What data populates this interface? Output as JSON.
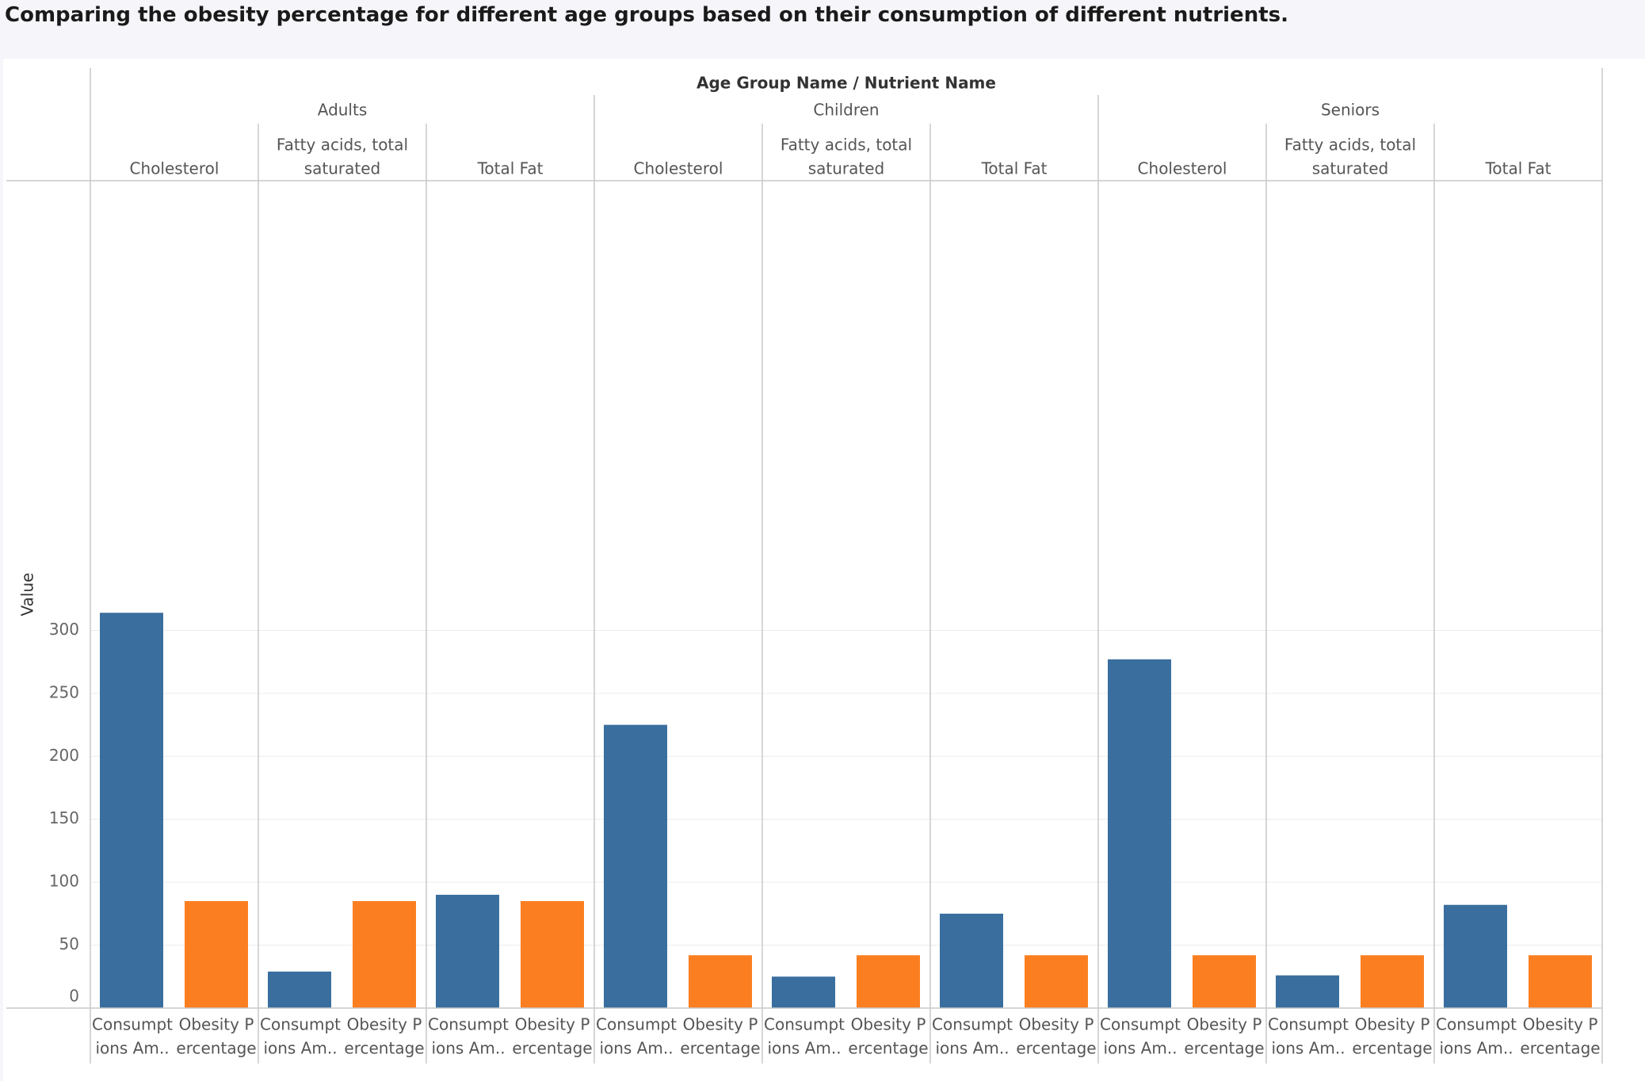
{
  "title": "Comparing the obesity percentage for different age groups based on their consumption of different nutrients.",
  "chart_data": {
    "type": "bar",
    "header_title": "Age Group Name  /  Nutrient Name",
    "ylabel": "Value",
    "ylim": [
      0,
      320
    ],
    "yticks": [
      0,
      50,
      100,
      150,
      200,
      250,
      300
    ],
    "grid": true,
    "groups": [
      {
        "name": "Adults",
        "nutrients": [
          {
            "name": [
              "Cholesterol"
            ],
            "values": [
              314,
              85
            ]
          },
          {
            "name": [
              "Fatty acids, total",
              "saturated"
            ],
            "values": [
              29,
              85
            ]
          },
          {
            "name": [
              "Total Fat"
            ],
            "values": [
              90,
              85
            ]
          }
        ]
      },
      {
        "name": "Children",
        "nutrients": [
          {
            "name": [
              "Cholesterol"
            ],
            "values": [
              225,
              42
            ]
          },
          {
            "name": [
              "Fatty acids, total",
              "saturated"
            ],
            "values": [
              25,
              42
            ]
          },
          {
            "name": [
              "Total Fat"
            ],
            "values": [
              75,
              42
            ]
          }
        ]
      },
      {
        "name": "Seniors",
        "nutrients": [
          {
            "name": [
              "Cholesterol"
            ],
            "values": [
              277,
              42
            ]
          },
          {
            "name": [
              "Fatty acids, total",
              "saturated"
            ],
            "values": [
              26,
              42
            ]
          },
          {
            "name": [
              "Total Fat"
            ],
            "values": [
              82,
              42
            ]
          }
        ]
      }
    ],
    "measures": [
      {
        "label": [
          "Consumpt",
          "ions Am.."
        ],
        "color": "#3a6e9e"
      },
      {
        "label": [
          "Obesity P",
          "ercentage"
        ],
        "color": "#fb7f21"
      }
    ]
  }
}
